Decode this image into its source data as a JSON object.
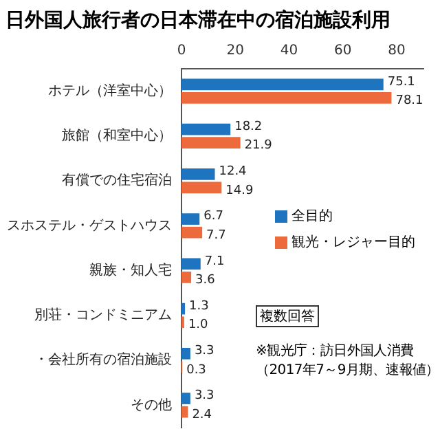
{
  "chart_data": {
    "type": "bar",
    "orientation": "horizontal",
    "title": "日外国人旅行者の日本滞在中の宿泊施設利用",
    "categories": [
      "ホテル（洋室中心）",
      "旅館（和室中心）",
      "有償での住宅宿泊",
      "スホステル・ゲストハウス",
      "親族・知人宅",
      "別荘・コンドミニアム",
      "・会社所有の宿泊施設",
      "その他"
    ],
    "series": [
      {
        "name": "全目的",
        "color": "#1f74c0",
        "values": [
          75.1,
          18.2,
          12.4,
          6.7,
          7.1,
          1.3,
          3.3,
          3.3
        ],
        "value_labels": [
          "75.1",
          "18.2",
          "12.4",
          "6.7",
          "7.1",
          "1.3",
          "3.3",
          "3.3"
        ]
      },
      {
        "name": "観光・レジャー目的",
        "color": "#ec6a3b",
        "values": [
          78.1,
          21.9,
          14.9,
          7.7,
          3.6,
          1.0,
          0.3,
          2.4
        ],
        "value_labels": [
          "78.1",
          "21.9",
          "14.9",
          "7.7",
          "3.6",
          "1.0",
          "0.3",
          "2.4"
        ]
      }
    ],
    "xlim": [
      0,
      90
    ],
    "xticks": [
      0,
      20,
      40,
      60,
      80
    ],
    "legend": "right",
    "grid": false,
    "annotations": [
      "複数回答",
      "※観光庁：訪日外国人消費",
      "（2017年7～9月期、速報値）"
    ]
  }
}
